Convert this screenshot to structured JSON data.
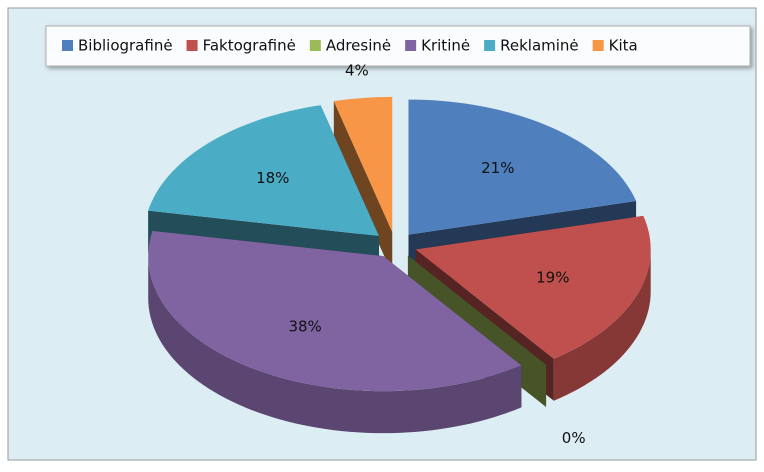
{
  "chart_data": {
    "type": "pie3d",
    "categories": [
      "Bibliografinė",
      "Faktografinė",
      "Adresinė",
      "Kritinė",
      "Reklaminė",
      "Kita"
    ],
    "values": [
      21,
      19,
      0,
      38,
      18,
      4
    ],
    "value_labels": [
      "21%",
      "19%",
      "0%",
      "38%",
      "18%",
      "4%"
    ],
    "colors": [
      "#4f7fbd",
      "#c0504d",
      "#9bbb59",
      "#8064a2",
      "#4bacc6",
      "#f79646"
    ],
    "legend": "top"
  }
}
